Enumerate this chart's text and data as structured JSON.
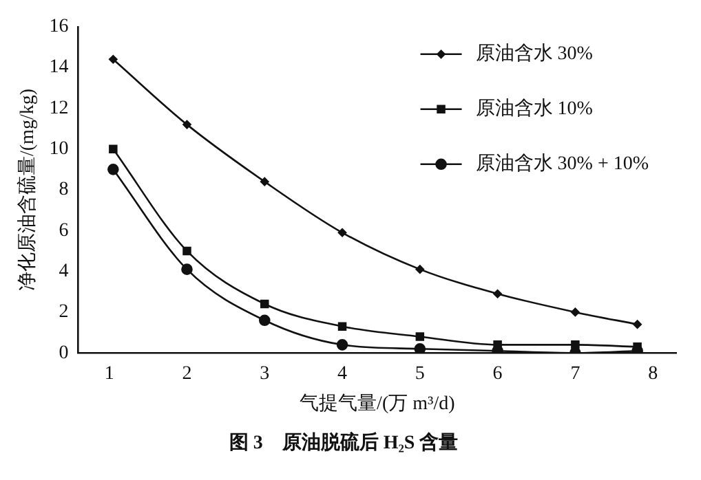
{
  "chart_data": {
    "type": "line",
    "title": "图 3　原油脱硫后 H₂S 含量",
    "xlabel": "气提气量/(万 m³/d)",
    "ylabel": "净化原油含硫量/(mg/kg)",
    "x": [
      1.05,
      2,
      3,
      4,
      5,
      6,
      7,
      7.8
    ],
    "series": [
      {
        "name": "原油含水 30%",
        "color": "#111111",
        "marker": "diamond",
        "values": [
          14.4,
          11.2,
          8.4,
          5.9,
          4.1,
          2.9,
          2.0,
          1.4
        ]
      },
      {
        "name": "原油含水 10%",
        "color": "#111111",
        "marker": "square",
        "values": [
          10.0,
          5.0,
          2.4,
          1.3,
          0.8,
          0.4,
          0.4,
          0.3
        ]
      },
      {
        "name": "原油含水 30% + 10%",
        "color": "#111111",
        "marker": "circle",
        "values": [
          9.0,
          4.1,
          1.6,
          0.4,
          0.2,
          0.1,
          0.0,
          0.1
        ]
      }
    ],
    "xlim": [
      0.6,
      8.3
    ],
    "xticks": [
      1,
      2,
      3,
      4,
      5,
      6,
      7,
      8
    ],
    "ylim": [
      0,
      16
    ],
    "yticks": [
      0,
      2,
      4,
      6,
      8,
      10,
      12,
      14,
      16
    ],
    "grid": false,
    "legend": "top right",
    "line_style": "solid"
  }
}
